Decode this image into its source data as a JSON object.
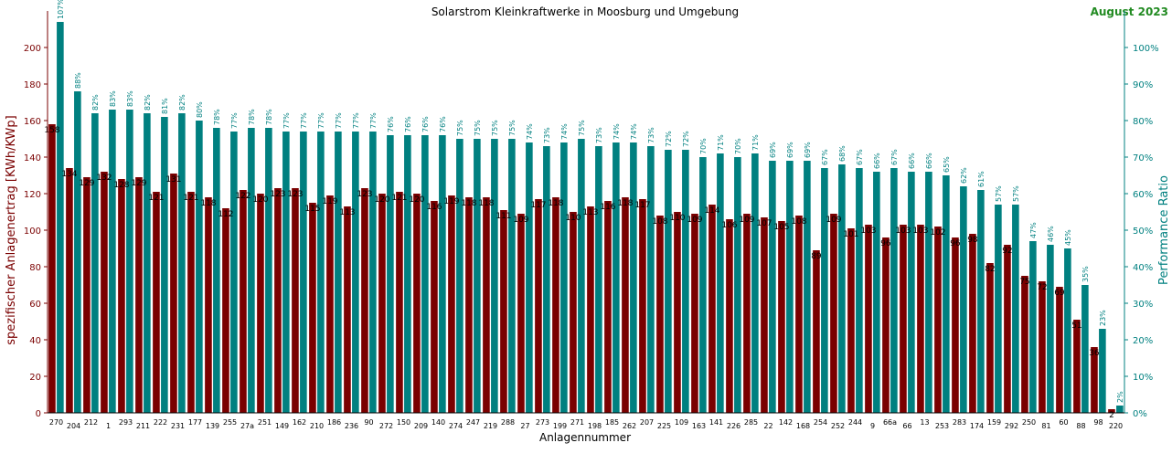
{
  "chart_data": {
    "type": "bar",
    "title": "Solarstrom Kleinkraftwerke in Moosburg und Umgebung",
    "period_label": "August 2023",
    "xlabel": "Anlagennummer",
    "ylabel": "spezifischer Anlagenertrag  [KWh/KWp]",
    "y2label": "Performance Ratio",
    "ylim": [
      0,
      220
    ],
    "y_ticks": [
      0,
      20,
      40,
      60,
      80,
      100,
      120,
      140,
      160,
      180,
      200
    ],
    "y2lim": [
      0,
      110
    ],
    "y2_ticks": [
      0,
      10,
      20,
      30,
      40,
      50,
      60,
      70,
      80,
      90,
      100
    ],
    "y2_tick_suffix": "%",
    "colors": {
      "yield": "#7a0000",
      "ratio": "#008080",
      "title_accent": "#228b22",
      "axis": "#000000"
    },
    "categories": [
      "270",
      "204",
      "212",
      "1",
      "293",
      "211",
      "222",
      "231",
      "177",
      "139",
      "255",
      "27a",
      "251",
      "149",
      "162",
      "210",
      "186",
      "236",
      "90",
      "272",
      "150",
      "209",
      "140",
      "274",
      "247",
      "219",
      "288",
      "27",
      "273",
      "199",
      "271",
      "198",
      "185",
      "262",
      "207",
      "225",
      "109",
      "163",
      "141",
      "226",
      "285",
      "22",
      "142",
      "168",
      "254",
      "252",
      "244",
      "9",
      "66a",
      "66",
      "13",
      "253",
      "283",
      "174",
      "159",
      "292",
      "250",
      "81",
      "60",
      "88",
      "98",
      "220"
    ],
    "series": [
      {
        "name": "spezifischer Anlagenertrag",
        "axis": "left",
        "values": [
          158,
          134,
          129,
          132,
          128,
          129,
          121,
          131,
          121,
          118,
          112,
          122,
          120,
          123,
          123,
          115,
          119,
          113,
          123,
          120,
          121,
          120,
          116,
          119,
          118,
          118,
          111,
          109,
          117,
          118,
          110,
          113,
          116,
          118,
          117,
          108,
          110,
          109,
          114,
          106,
          109,
          107,
          105,
          108,
          89,
          109,
          101,
          103,
          96,
          103,
          103,
          102,
          96,
          98,
          82,
          92,
          75,
          72,
          69,
          51,
          36,
          2
        ],
        "labels": [
          "158",
          "134",
          "129",
          "132",
          "128",
          "129",
          "121",
          "131",
          "121",
          "118",
          "112",
          "122",
          "120",
          "123",
          "123",
          "115",
          "119",
          "113",
          "123",
          "120",
          "121",
          "120",
          "116",
          "119",
          "118",
          "118",
          "111",
          "109",
          "117",
          "118",
          "110",
          "113",
          "116",
          "118",
          "117",
          "108",
          "110",
          "109",
          "114",
          "106",
          "109",
          "107",
          "105",
          "108",
          "89",
          "109",
          "101",
          "103",
          "96",
          "103",
          "103",
          "102",
          "96",
          "98",
          "82",
          "92",
          "75",
          "72",
          "69",
          "51",
          "36",
          "2"
        ]
      },
      {
        "name": "Performance Ratio",
        "axis": "right",
        "values": [
          107,
          88,
          82,
          83,
          83,
          82,
          81,
          82,
          80,
          78,
          77,
          78,
          78,
          77,
          77,
          77,
          77,
          77,
          77,
          76,
          76,
          76,
          76,
          75,
          75,
          75,
          75,
          74,
          73,
          74,
          75,
          73,
          74,
          74,
          73,
          72,
          72,
          70,
          71,
          70,
          71,
          69,
          69,
          69,
          67,
          68,
          67,
          66,
          67,
          66,
          66,
          65,
          62,
          61,
          57,
          57,
          47,
          46,
          45,
          35,
          23,
          2
        ],
        "labels": [
          "107%",
          "88%",
          "82%",
          "83%",
          "83%",
          "82%",
          "81%",
          "82%",
          "80%",
          "78%",
          "77%",
          "78%",
          "78%",
          "77%",
          "77%",
          "77%",
          "77%",
          "77%",
          "77%",
          "76%",
          "76%",
          "76%",
          "76%",
          "75%",
          "75%",
          "75%",
          "75%",
          "74%",
          "73%",
          "74%",
          "75%",
          "73%",
          "74%",
          "74%",
          "73%",
          "72%",
          "72%",
          "70%",
          "71%",
          "70%",
          "71%",
          "69%",
          "69%",
          "69%",
          "67%",
          "68%",
          "67%",
          "66%",
          "67%",
          "66%",
          "66%",
          "65%",
          "62%",
          "61%",
          "57%",
          "57%",
          "47%",
          "46%",
          "45%",
          "35%",
          "23%",
          "2%"
        ]
      }
    ]
  }
}
